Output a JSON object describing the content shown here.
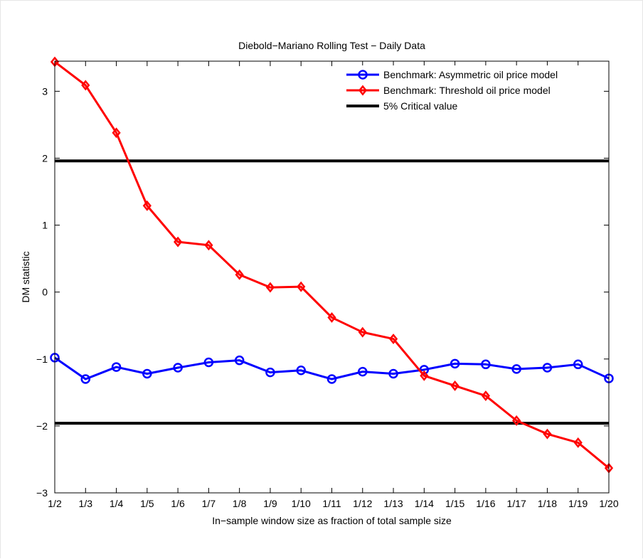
{
  "chart_data": {
    "type": "line",
    "title": "Diebold−Mariano Rolling Test − Daily Data",
    "xlabel": "In−sample window size as fraction of total sample size",
    "ylabel": "DM statistic",
    "categories": [
      "1/2",
      "1/3",
      "1/4",
      "1/5",
      "1/6",
      "1/7",
      "1/8",
      "1/9",
      "1/10",
      "1/11",
      "1/12",
      "1/13",
      "1/14",
      "1/15",
      "1/16",
      "1/17",
      "1/18",
      "1/19",
      "1/20"
    ],
    "ylim": [
      -3,
      3.45
    ],
    "yticks": [
      {
        "value": 3,
        "label": "3"
      },
      {
        "value": 2,
        "label": "2"
      },
      {
        "value": 1,
        "label": "1"
      },
      {
        "value": 0,
        "label": "0"
      },
      {
        "value": -1,
        "label": "−1"
      },
      {
        "value": -2,
        "label": "−2"
      },
      {
        "value": -3,
        "label": "−3"
      }
    ],
    "grid": false,
    "legend_position": "top-right",
    "series": [
      {
        "name": "Benchmark: Asymmetric oil price model",
        "color": "#0000ff",
        "marker": "circle",
        "values": [
          -0.98,
          -1.3,
          -1.12,
          -1.22,
          -1.13,
          -1.05,
          -1.02,
          -1.2,
          -1.17,
          -1.3,
          -1.19,
          -1.22,
          -1.16,
          -1.07,
          -1.08,
          -1.15,
          -1.13,
          -1.08,
          -1.29
        ]
      },
      {
        "name": "Benchmark: Threshold oil price model",
        "color": "#ff0000",
        "marker": "diamond",
        "values": [
          3.44,
          3.09,
          2.38,
          1.29,
          0.75,
          0.7,
          0.26,
          0.07,
          0.08,
          -0.38,
          -0.6,
          -0.7,
          -1.25,
          -1.4,
          -1.55,
          -1.92,
          -2.12,
          -2.25,
          -2.63
        ]
      }
    ],
    "reference_lines": [
      {
        "name": "5% Critical value",
        "color": "#000000",
        "values": [
          1.96,
          -1.96
        ]
      }
    ]
  }
}
